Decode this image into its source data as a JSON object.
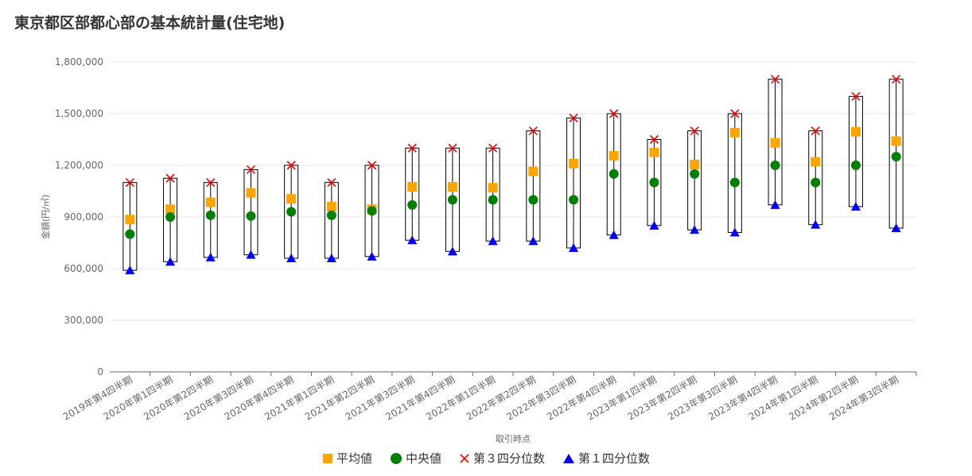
{
  "title": "東京都区部都心部の基本統計量(住宅地)",
  "chart_data": {
    "type": "box",
    "xlabel": "取引時点",
    "ylabel": "金額(円/㎡)",
    "ylim": [
      0,
      1800000
    ],
    "yticks": [
      "0",
      "300,000",
      "600,000",
      "900,000",
      "1,200,000",
      "1,500,000",
      "1,800,000"
    ],
    "categories": [
      "2019年第4四半期",
      "2020年第1四半期",
      "2020年第2四半期",
      "2020年第3四半期",
      "2020年第4四半期",
      "2021年第1四半期",
      "2021年第2四半期",
      "2021年第3四半期",
      "2021年第4四半期",
      "2022年第1四半期",
      "2022年第2四半期",
      "2022年第3四半期",
      "2022年第4四半期",
      "2023年第1四半期",
      "2023年第2四半期",
      "2023年第3四半期",
      "2023年第4四半期",
      "2024年第1四半期",
      "2024年第2四半期",
      "2024年第3四半期"
    ],
    "series": [
      {
        "name": "平均値",
        "color": "#FFA500",
        "marker": "square",
        "values": [
          885000,
          945000,
          985000,
          1040000,
          1005000,
          960000,
          945000,
          1075000,
          1075000,
          1070000,
          1165000,
          1210000,
          1255000,
          1275000,
          1205000,
          1390000,
          1330000,
          1220000,
          1395000,
          1340000
        ]
      },
      {
        "name": "中央値",
        "color": "#008000",
        "marker": "circle",
        "values": [
          800000,
          900000,
          910000,
          905000,
          930000,
          910000,
          935000,
          970000,
          1000000,
          1000000,
          1000000,
          1000000,
          1150000,
          1100000,
          1150000,
          1100000,
          1200000,
          1100000,
          1200000,
          1250000
        ]
      },
      {
        "name": "第３四分位数",
        "color": "#FF0000",
        "marker": "cross",
        "values": [
          1100000,
          1125000,
          1100000,
          1175000,
          1200000,
          1100000,
          1200000,
          1300000,
          1300000,
          1300000,
          1400000,
          1475000,
          1500000,
          1350000,
          1400000,
          1500000,
          1700000,
          1400000,
          1600000,
          1700000
        ]
      },
      {
        "name": "第１四分位数",
        "color": "#0000FF",
        "marker": "triangle",
        "values": [
          590000,
          640000,
          665000,
          680000,
          660000,
          660000,
          670000,
          765000,
          700000,
          760000,
          760000,
          720000,
          795000,
          850000,
          825000,
          810000,
          970000,
          855000,
          960000,
          835000
        ]
      }
    ],
    "legend_position": "bottom",
    "grid": true
  }
}
